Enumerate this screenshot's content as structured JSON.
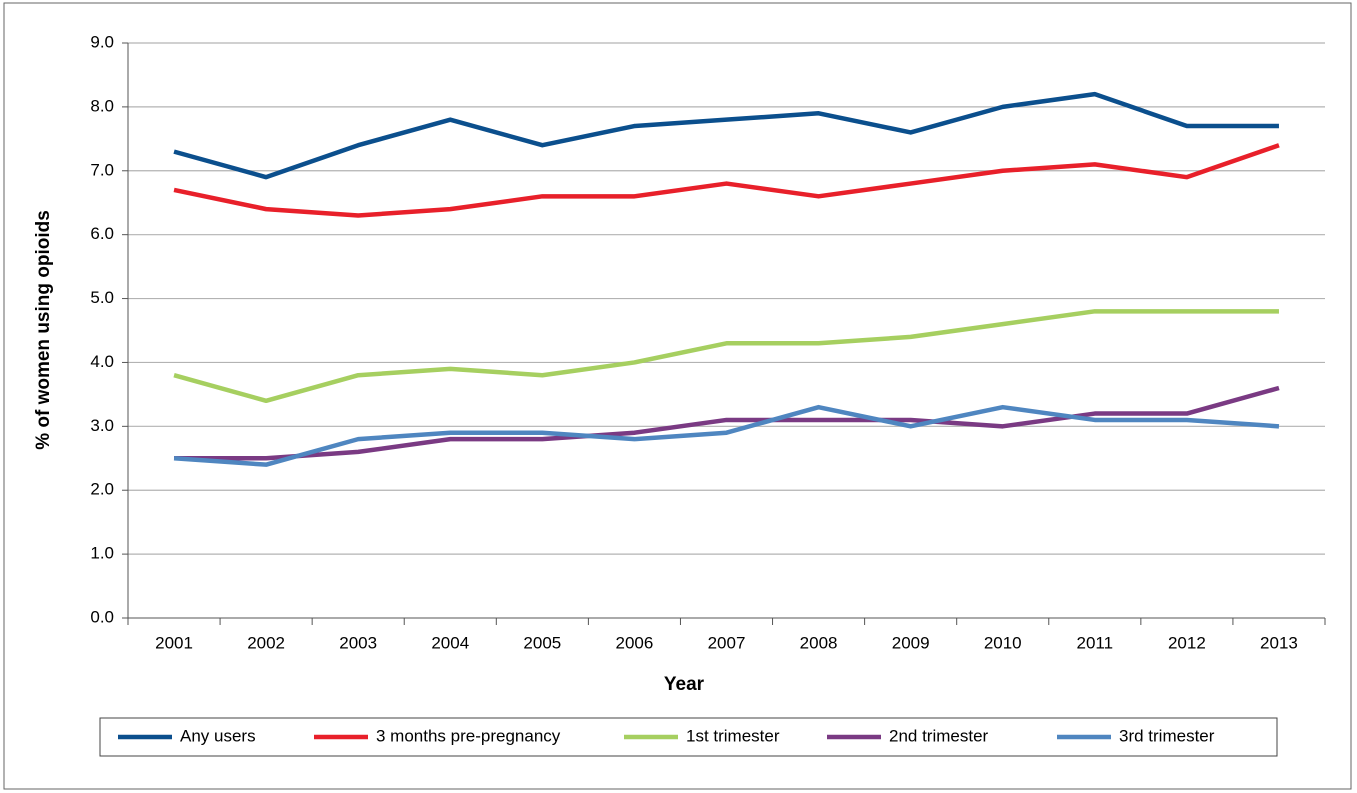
{
  "chart_data": {
    "type": "line",
    "x_label": "Year",
    "y_label": "% of women using opioids",
    "categories": [
      "2001",
      "2002",
      "2003",
      "2004",
      "2005",
      "2006",
      "2007",
      "2008",
      "2009",
      "2010",
      "2011",
      "2012",
      "2013"
    ],
    "series": [
      {
        "name": "Any users",
        "color": "#0b4f8d",
        "values": [
          7.3,
          6.9,
          7.4,
          7.8,
          7.4,
          7.7,
          7.8,
          7.9,
          7.6,
          8.0,
          8.2,
          7.7,
          7.7
        ]
      },
      {
        "name": "3 months pre-pregnancy",
        "color": "#e8202a",
        "values": [
          6.7,
          6.4,
          6.3,
          6.4,
          6.6,
          6.6,
          6.8,
          6.6,
          6.8,
          7.0,
          7.1,
          6.9,
          7.4
        ]
      },
      {
        "name": "1st trimester",
        "color": "#a6cf60",
        "values": [
          3.8,
          3.4,
          3.8,
          3.9,
          3.8,
          4.0,
          4.3,
          4.3,
          4.4,
          4.6,
          4.8,
          4.8,
          4.8
        ]
      },
      {
        "name": "2nd trimester",
        "color": "#7a3a83",
        "values": [
          2.5,
          2.5,
          2.6,
          2.8,
          2.8,
          2.9,
          3.1,
          3.1,
          3.1,
          3.0,
          3.2,
          3.2,
          3.6
        ]
      },
      {
        "name": "3rd trimester",
        "color": "#4f86c0",
        "values": [
          2.5,
          2.4,
          2.8,
          2.9,
          2.9,
          2.8,
          2.9,
          3.3,
          3.0,
          3.3,
          3.1,
          3.1,
          3.0
        ]
      }
    ],
    "ylim": [
      0,
      9
    ],
    "yticks": [
      {
        "value": 0,
        "label": "0.0"
      },
      {
        "value": 1,
        "label": "1.0"
      },
      {
        "value": 2,
        "label": "2.0"
      },
      {
        "value": 3,
        "label": "3.0"
      },
      {
        "value": 4,
        "label": "4.0"
      },
      {
        "value": 5,
        "label": "5.0"
      },
      {
        "value": 6,
        "label": "6.0"
      },
      {
        "value": 7,
        "label": "7.0"
      },
      {
        "value": 8,
        "label": "8.0"
      },
      {
        "value": 9,
        "label": "9.0"
      }
    ],
    "grid": true,
    "legend": "bottom"
  }
}
